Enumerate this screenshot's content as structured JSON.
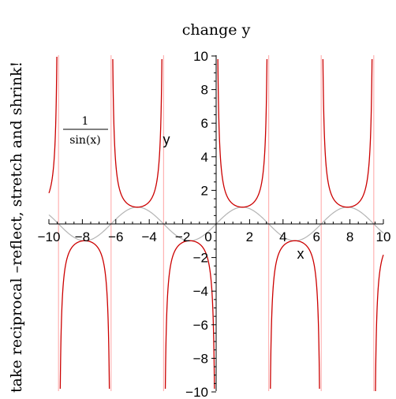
{
  "chart_data": {
    "type": "line",
    "title": "change y",
    "side_caption": "take reciprocal –reflect, stretch and shrink!",
    "xlabel": "x",
    "ylabel": "y",
    "xlim": [
      -10,
      10
    ],
    "ylim": [
      -10,
      10
    ],
    "x_ticks": [
      "−10",
      "−8",
      "−6",
      "−4",
      "−2",
      "0",
      "2",
      "4",
      "6",
      "8",
      "10"
    ],
    "y_ticks": [
      "−10",
      "−8",
      "−6",
      "−4",
      "−2",
      "2",
      "4",
      "6",
      "8",
      "10"
    ],
    "series": [
      {
        "name": "1/sin(x)",
        "function": "1/sin(x)",
        "color": "#cc0000"
      },
      {
        "function": "sin(x)",
        "color": "#b4b4b4"
      }
    ],
    "asymptotes_x": [
      -9.4248,
      -6.2832,
      -3.1416,
      3.1416,
      6.2832,
      9.4248
    ],
    "asymptote_color": "#ffb3b3",
    "annotation": {
      "numerator": "1",
      "denominator": "sin(x)"
    }
  }
}
